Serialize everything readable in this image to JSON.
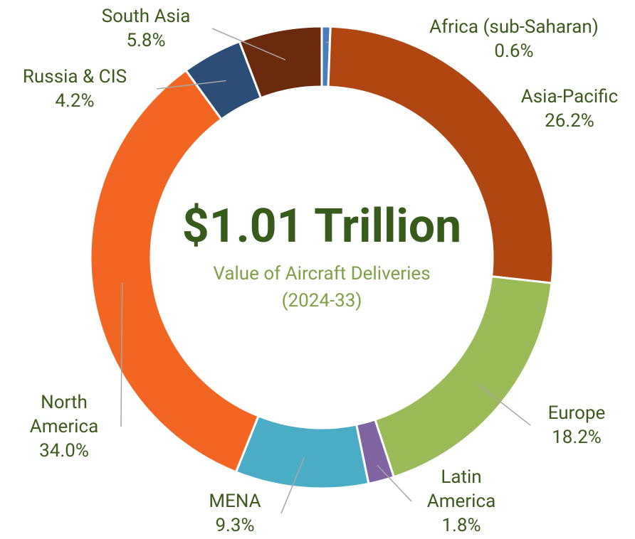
{
  "chart_data": {
    "type": "donut",
    "title": "$1.01 Trillion",
    "subtitle": "Value of Aircraft Deliveries",
    "period": "(2024-33)",
    "categories": [
      "Africa (sub-Saharan)",
      "Asia-Pacific",
      "Europe",
      "Latin America",
      "MENA",
      "North America",
      "Russia & CIS",
      "South Asia"
    ],
    "values": [
      0.6,
      26.2,
      18.2,
      1.8,
      9.3,
      34.0,
      4.2,
      5.8
    ],
    "value_labels": [
      "0.6%",
      "26.2%",
      "18.2%",
      "1.8%",
      "9.3%",
      "34.0%",
      "4.2%",
      "5.8%"
    ],
    "colors": [
      "#4a7ebb",
      "#b04713",
      "#9bbb59",
      "#8064a2",
      "#4bacc6",
      "#f26522",
      "#2c4d75",
      "#6b2a0e"
    ]
  }
}
